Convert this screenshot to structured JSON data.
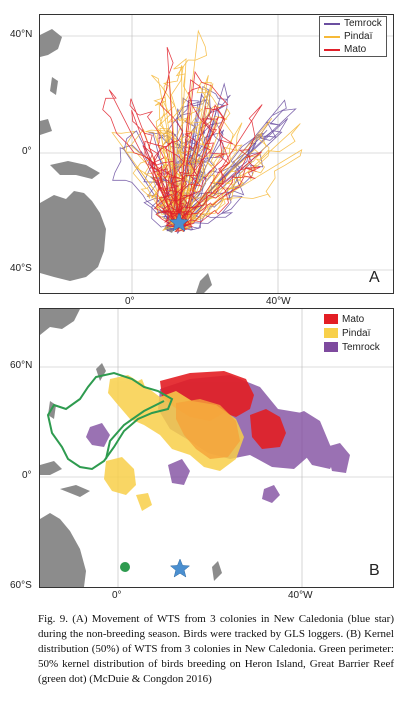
{
  "panel_a": {
    "letter": "A",
    "lat_labels": [
      "40°N",
      "0°",
      "40°S"
    ],
    "lon_labels": [
      "0°",
      "40°W"
    ],
    "legend": [
      {
        "label": "Temrock",
        "color": "#6b4fa0"
      },
      {
        "label": "Pindaï",
        "color": "#f6b938"
      },
      {
        "label": "Mato",
        "color": "#e0202a"
      }
    ]
  },
  "panel_b": {
    "letter": "B",
    "lat_labels": [
      "60°N",
      "0°",
      "60°S"
    ],
    "lon_labels": [
      "0°",
      "40°W"
    ],
    "legend": [
      {
        "label": "Mato",
        "color": "#e31e24"
      },
      {
        "label": "Pindaï",
        "color": "#f8d04a"
      },
      {
        "label": "Temrock",
        "color": "#7e4a9e"
      }
    ],
    "heron_perimeter_color": "#2e9b4f"
  },
  "markers": {
    "colony_star_color": "#4a8fd0",
    "heron_dot_color": "#2e9b4f"
  },
  "caption": "Fig. 9. (A) Movement of WTS from 3 colonies in New Caledonia (blue star) during the non-breeding season. Birds were tracked by GLS loggers. (B) Kernel distribution (50%) of WTS from 3 colonies in New Caledonia. Green perimeter: 50% kernel distribution of birds breeding on Heron Island, Great Barrier Reef (green dot) (McDuie & Congdon 2016)"
}
